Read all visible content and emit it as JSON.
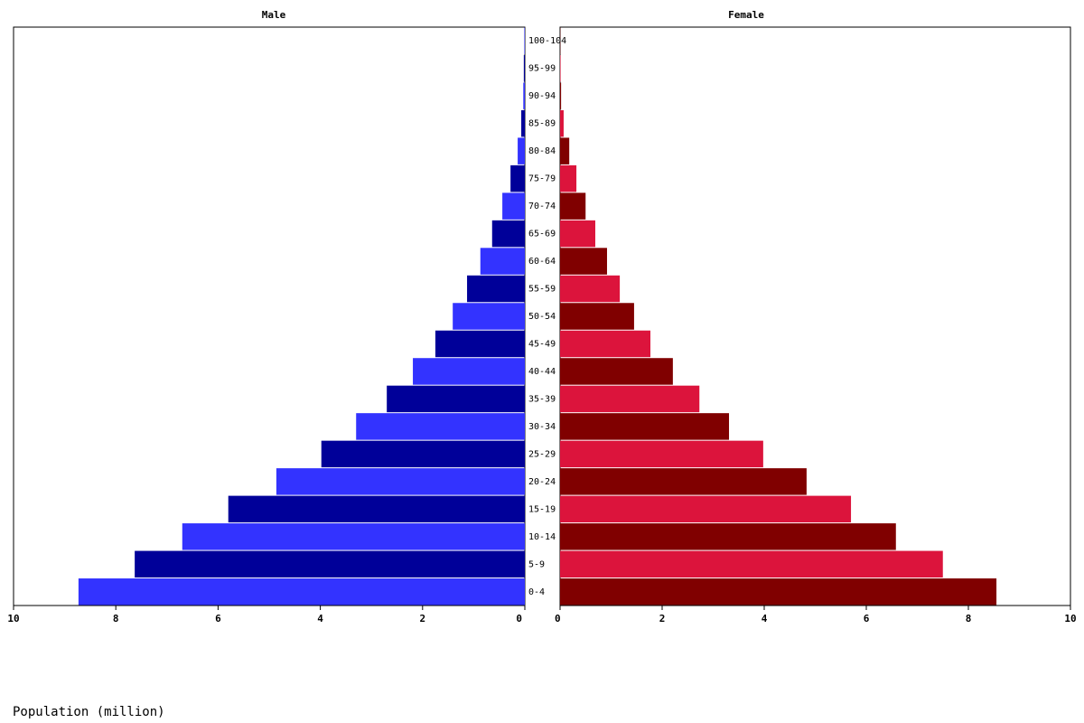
{
  "chart_data": {
    "type": "pyramid",
    "xlabel": "Population (million)",
    "categories": [
      "0-4",
      "5-9",
      "10-14",
      "15-19",
      "20-24",
      "25-29",
      "30-34",
      "35-39",
      "40-44",
      "45-49",
      "50-54",
      "55-59",
      "60-64",
      "65-69",
      "70-74",
      "75-79",
      "80-84",
      "85-89",
      "90-94",
      "95-99",
      "100-104"
    ],
    "series": [
      {
        "name": "Male",
        "colors": [
          "#3333ff",
          "#000099"
        ],
        "values": [
          8.73,
          7.63,
          6.7,
          5.8,
          4.86,
          3.98,
          3.3,
          2.7,
          2.19,
          1.75,
          1.41,
          1.13,
          0.87,
          0.64,
          0.44,
          0.28,
          0.14,
          0.07,
          0.03,
          0.02,
          0.01
        ]
      },
      {
        "name": "Female",
        "colors": [
          "#800000",
          "#dc143c"
        ],
        "values": [
          8.55,
          7.5,
          6.58,
          5.7,
          4.83,
          3.98,
          3.31,
          2.73,
          2.21,
          1.77,
          1.45,
          1.17,
          0.92,
          0.69,
          0.5,
          0.32,
          0.18,
          0.07,
          0.02,
          0.01,
          0.005
        ]
      }
    ],
    "xlim": [
      0,
      10
    ],
    "xticks": [
      0,
      2,
      4,
      6,
      8,
      10
    ]
  }
}
